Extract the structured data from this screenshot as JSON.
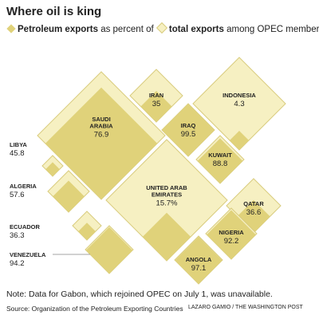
{
  "title": "Where oil is king",
  "legend": {
    "petroleum_bold": "Petroleum exports",
    "petroleum_rest": "as percent of",
    "total_bold": "total exports",
    "total_rest": "among OPEC members"
  },
  "note": "Note: Data for Gabon, which rejoined OPEC on July 1, was unavailable.",
  "source": "Source: Organization of the Petroleum Exporting Countries",
  "credit": "LAZARO GAMIO / THE WASHINGTON POST",
  "colors": {
    "total_fill": "#f6f0c2",
    "total_stroke": "#d9cc7e",
    "petroleum_fill": "#e0d27a",
    "leader": "#888888"
  },
  "chart_data": {
    "type": "nested-diamond",
    "measure": "Petroleum exports as percent of total exports",
    "countries": [
      {
        "name_lines": [
          "IRAN"
        ],
        "value": 35,
        "value_text": "35"
      },
      {
        "name_lines": [
          "INDONESIA"
        ],
        "value": 4.3,
        "value_text": "4.3"
      },
      {
        "name_lines": [
          "SAUDI",
          "ARABIA"
        ],
        "value": 76.9,
        "value_text": "76.9"
      },
      {
        "name_lines": [
          "IRAQ"
        ],
        "value": 99.5,
        "value_text": "99.5"
      },
      {
        "name_lines": [
          "KUWAIT"
        ],
        "value": 88.8,
        "value_text": "88.8"
      },
      {
        "name_lines": [
          "LIBYA"
        ],
        "value": 45.8,
        "value_text": "45.8"
      },
      {
        "name_lines": [
          "ALGERIA"
        ],
        "value": 57.6,
        "value_text": "57.6"
      },
      {
        "name_lines": [
          "UNITED ARAB",
          "EMIRATES"
        ],
        "value": 15.7,
        "value_text": "15.7%"
      },
      {
        "name_lines": [
          "QATAR"
        ],
        "value": 36.6,
        "value_text": "36.6"
      },
      {
        "name_lines": [
          "ECUADOR"
        ],
        "value": 36.3,
        "value_text": "36.3"
      },
      {
        "name_lines": [
          "NIGERIA"
        ],
        "value": 92.2,
        "value_text": "92.2"
      },
      {
        "name_lines": [
          "VENEZUELA"
        ],
        "value": 94.2,
        "value_text": "94.2"
      },
      {
        "name_lines": [
          "ANGOLA"
        ],
        "value": 97.1,
        "value_text": "97.1"
      }
    ]
  }
}
